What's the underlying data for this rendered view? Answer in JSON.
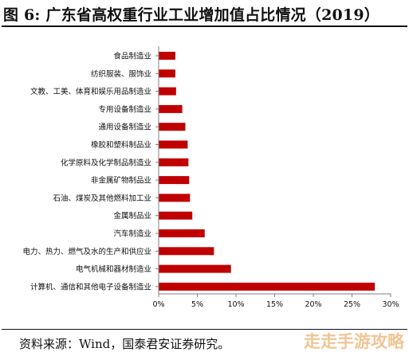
{
  "figure": {
    "title": "图 6:  广东省高权重行业工业增加值占比情况（2019）",
    "source": "资料来源：Wind，国泰君安证券研究。",
    "watermark": "走走手游攻略"
  },
  "colors": {
    "bar": "#c00000",
    "axis": "#7f7f7f",
    "text": "#111111"
  },
  "chart_data": {
    "type": "bar",
    "orientation": "horizontal",
    "title": "",
    "xlabel": "",
    "ylabel": "",
    "xlim": [
      0,
      0.3
    ],
    "xticks": [
      "0%",
      "5%",
      "10%",
      "15%",
      "20%",
      "25%",
      "30%"
    ],
    "grid": false,
    "legend": "none",
    "categories": [
      "食品制造业",
      "纺织服装、服饰业",
      "文教、工美、体育和娱乐用品制造业",
      "专用设备制造业",
      "通用设备制造业",
      "橡胶和塑料制品业",
      "化学原料及化学制品制造业",
      "非金属矿物制品业",
      "石油、煤炭及其他燃料加工业",
      "金属制品业",
      "汽车制造业",
      "电力、热力、燃气及水的生产和供应业",
      "电气机械和器材制造业",
      "计算机、通信和其他电子设备制造业"
    ],
    "values": [
      0.021,
      0.021,
      0.022,
      0.03,
      0.034,
      0.037,
      0.038,
      0.039,
      0.04,
      0.043,
      0.059,
      0.071,
      0.093,
      0.279
    ]
  }
}
